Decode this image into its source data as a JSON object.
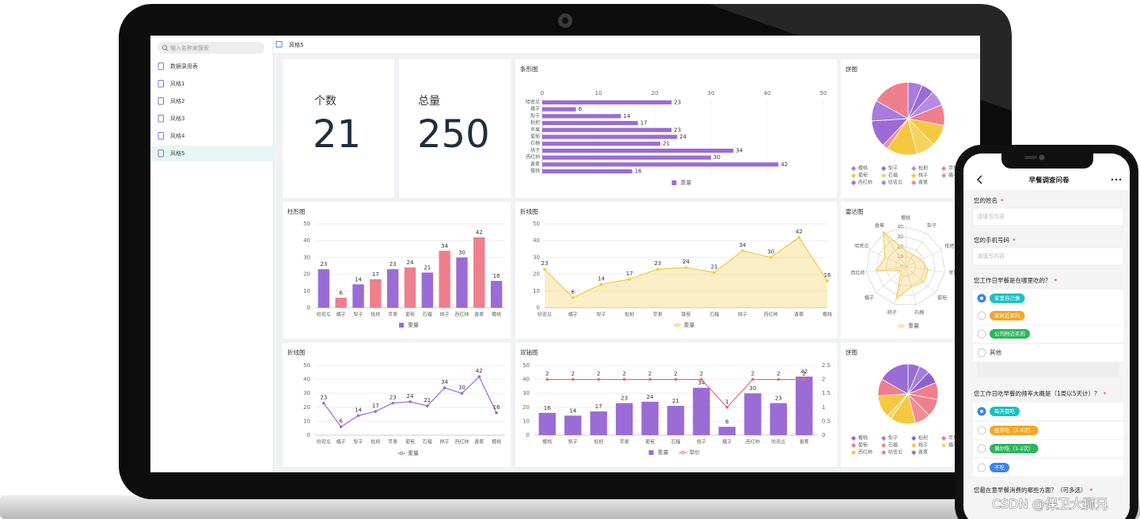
{
  "sidebar": {
    "search": "输入名称来搜索",
    "items": [
      "数据录用表",
      "风格1",
      "风格2",
      "风格3",
      "风格4",
      "风格5"
    ]
  },
  "tab": "风格5",
  "stats": [
    {
      "label": "个数",
      "value": 21
    },
    {
      "label": "总量",
      "value": 250
    }
  ],
  "chart_data": [
    {
      "type": "hbar",
      "title": "条形图",
      "categories": [
        "哈密瓜",
        "橘子",
        "梨子",
        "枇杷",
        "苹果",
        "葡萄",
        "石榴",
        "桃子",
        "西红柿",
        "香蕉",
        "樱桃"
      ],
      "series": [
        {
          "name": "重量",
          "color": "#9b6bd6",
          "values": [
            23,
            6,
            14,
            17,
            23,
            24,
            21,
            34,
            30,
            42,
            16
          ]
        }
      ],
      "xlim": [
        0,
        50
      ],
      "xticks": [
        0,
        10,
        20,
        30,
        40,
        50
      ]
    },
    {
      "type": "pie",
      "title": "饼图",
      "categories": [
        "樱桃",
        "梨子",
        "枇杷",
        "苹果",
        "葡萄",
        "石榴",
        "桃子",
        "橘子",
        "西红柿",
        "哈密瓜",
        "香蕉"
      ],
      "values": [
        16,
        14,
        17,
        23,
        24,
        21,
        34,
        6,
        30,
        23,
        42
      ],
      "colors": [
        "#a77be0",
        "#9b6bd6",
        "#b48ae6",
        "#f07f8d",
        "#f5c842",
        "#f7d35e",
        "#f5c842",
        "#f48a96",
        "#9b6bd6",
        "#a77be0",
        "#f07f8d"
      ]
    },
    {
      "type": "bar",
      "title": "柱形图",
      "categories": [
        "哈密瓜",
        "橘子",
        "梨子",
        "枇杷",
        "苹果",
        "葡萄",
        "石榴",
        "桃子",
        "西红柿",
        "香蕉",
        "樱桃"
      ],
      "series": [
        {
          "name": "重量",
          "color": "#9b6bd6",
          "colors": [
            "#9b6bd6",
            "#f07f8d",
            "#9b6bd6",
            "#f07f8d",
            "#9b6bd6",
            "#f07f8d",
            "#9b6bd6",
            "#f07f8d",
            "#9b6bd6",
            "#f07f8d",
            "#9b6bd6"
          ],
          "values": [
            23,
            6,
            14,
            17,
            23,
            24,
            21,
            34,
            30,
            42,
            16
          ]
        }
      ],
      "ylim": [
        0,
        50
      ],
      "yticks": [
        0,
        10,
        20,
        30,
        40,
        50
      ]
    },
    {
      "type": "area",
      "title": "折线图",
      "categories": [
        "哈密瓜",
        "橘子",
        "梨子",
        "枇杷",
        "苹果",
        "葡萄",
        "石榴",
        "桃子",
        "西红柿",
        "香蕉",
        "樱桃"
      ],
      "series": [
        {
          "name": "重量",
          "color": "#f5c842",
          "values": [
            23,
            6,
            14,
            17,
            23,
            24,
            21,
            34,
            30,
            42,
            16
          ]
        }
      ],
      "ylim": [
        0,
        50
      ],
      "yticks": [
        0,
        10,
        20,
        30,
        40,
        50
      ]
    },
    {
      "type": "radar",
      "title": "雷达图",
      "categories": [
        "樱桃",
        "梨子",
        "枇杷",
        "苹果",
        "葡萄",
        "石榴",
        "桃子",
        "橘子",
        "西红柿",
        "哈密瓜",
        "香蕉"
      ],
      "series": [
        {
          "name": "重量",
          "color": "#f5c842",
          "values": [
            16,
            14,
            17,
            23,
            24,
            21,
            34,
            6,
            30,
            23,
            42
          ]
        }
      ],
      "rlim": [
        0,
        40
      ],
      "rticks": [
        0,
        10,
        20,
        30,
        40
      ]
    },
    {
      "type": "line",
      "title": "折线图",
      "categories": [
        "哈密瓜",
        "橘子",
        "梨子",
        "枇杷",
        "苹果",
        "葡萄",
        "石榴",
        "桃子",
        "西红柿",
        "香蕉",
        "樱桃"
      ],
      "series": [
        {
          "name": "重量",
          "color": "#9b6bd6",
          "values": [
            23,
            6,
            14,
            17,
            23,
            24,
            21,
            34,
            30,
            42,
            16
          ]
        }
      ],
      "ylim": [
        0,
        50
      ],
      "yticks": [
        0,
        10,
        20,
        30,
        40,
        50
      ]
    },
    {
      "type": "combo",
      "title": "双轴图",
      "categories": [
        "樱桃",
        "梨子",
        "枇杷",
        "苹果",
        "葡萄",
        "石榴",
        "桃子",
        "橘子",
        "西红柿",
        "哈密瓜",
        "香蕉"
      ],
      "series": [
        {
          "name": "重量",
          "color": "#9b6bd6",
          "values": [
            16,
            14,
            17,
            23,
            24,
            21,
            34,
            6,
            30,
            23,
            42
          ]
        },
        {
          "name": "单价",
          "color": "#e86a78",
          "axis": "y2",
          "values": [
            2,
            2,
            2,
            2,
            2,
            2,
            2,
            1,
            2,
            2,
            2
          ]
        }
      ],
      "ylim": [
        0,
        50
      ],
      "yticks": [
        0,
        10,
        20,
        30,
        40,
        50
      ],
      "y2lim": [
        0,
        2.5
      ],
      "y2ticks": [
        0,
        0.5,
        1,
        1.5,
        2,
        2.5
      ]
    },
    {
      "type": "pie",
      "title": "饼图",
      "categories": [
        "樱桃",
        "梨子",
        "枇杷",
        "苹果",
        "葡萄",
        "石榴",
        "桃子",
        "橘子",
        "西红柿",
        "哈密瓜",
        "香蕉"
      ],
      "values": [
        16,
        14,
        17,
        23,
        24,
        21,
        34,
        6,
        30,
        23,
        42
      ],
      "colors": [
        "#9b6bd6",
        "#a77be0",
        "#8f5fd0",
        "#f07f8d",
        "#f07f8d",
        "#f48a96",
        "#f5c842",
        "#f7d35e",
        "#f5c842",
        "#f07f8d",
        "#9b6bd6"
      ]
    }
  ],
  "phone": {
    "title": "早餐调查问卷",
    "required": "*",
    "questions": [
      {
        "label": "您的姓名",
        "placeholder": "请填写内容"
      },
      {
        "label": "您的手机号码",
        "placeholder": "请填写内容"
      },
      {
        "label": "您工作日早餐是在哪里吃的？",
        "selected": 0,
        "options": [
          {
            "text": "家里自己做",
            "color": "#19c1c1"
          },
          {
            "text": "家附近买的",
            "color": "#f5a623"
          },
          {
            "text": "公司附近买的",
            "color": "#2db55d"
          },
          {
            "text": "其他"
          }
        ]
      },
      {
        "label": "您工作日吃早餐的频率大概是（1周以5天计）？",
        "selected": 0,
        "options": [
          {
            "text": "每天都吃",
            "color": "#19c1c1"
          },
          {
            "text": "经常吃（3-4次）",
            "color": "#f5a623"
          },
          {
            "text": "偶尔吃（1-2次）",
            "color": "#2db55d"
          },
          {
            "text": "不吃",
            "color": "#3b82f6"
          }
        ]
      },
      {
        "label": "您最在意早餐消费的哪些方面？（可多选）"
      }
    ]
  },
  "watermark": "CSDN @保卫大狮兄"
}
